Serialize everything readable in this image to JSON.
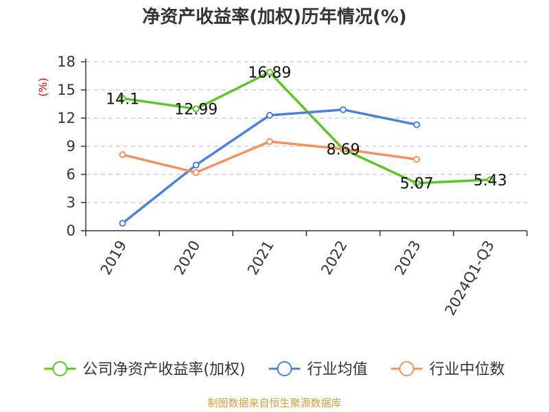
{
  "chart_data": {
    "type": "line",
    "title": "净资产收益率(加权)历年情况(%)",
    "ylabel": "(%)",
    "categories": [
      "2019",
      "2020",
      "2021",
      "2022",
      "2023",
      "2024Q1-Q3"
    ],
    "ylim": [
      0,
      18
    ],
    "yticks": [
      0,
      3,
      6,
      9,
      12,
      15,
      18
    ],
    "grid": true,
    "legend_position": "bottom",
    "series": [
      {
        "name": "公司净资产收益率(加权)",
        "color": "#5cc52a",
        "values": [
          14.1,
          12.99,
          16.89,
          8.69,
          5.07,
          5.43
        ],
        "labels": [
          "14.1",
          "12.99",
          "16.89",
          "8.69",
          "5.07",
          "5.43"
        ]
      },
      {
        "name": "行业均值",
        "color": "#4d80d8",
        "values": [
          0.8,
          7.0,
          12.3,
          12.9,
          11.3,
          null
        ],
        "labels": []
      },
      {
        "name": "行业中位数",
        "color": "#f4925f",
        "values": [
          8.1,
          6.2,
          9.5,
          8.7,
          7.6,
          null
        ],
        "labels": []
      }
    ]
  },
  "source": "制图数据来自恒生聚源数据库"
}
